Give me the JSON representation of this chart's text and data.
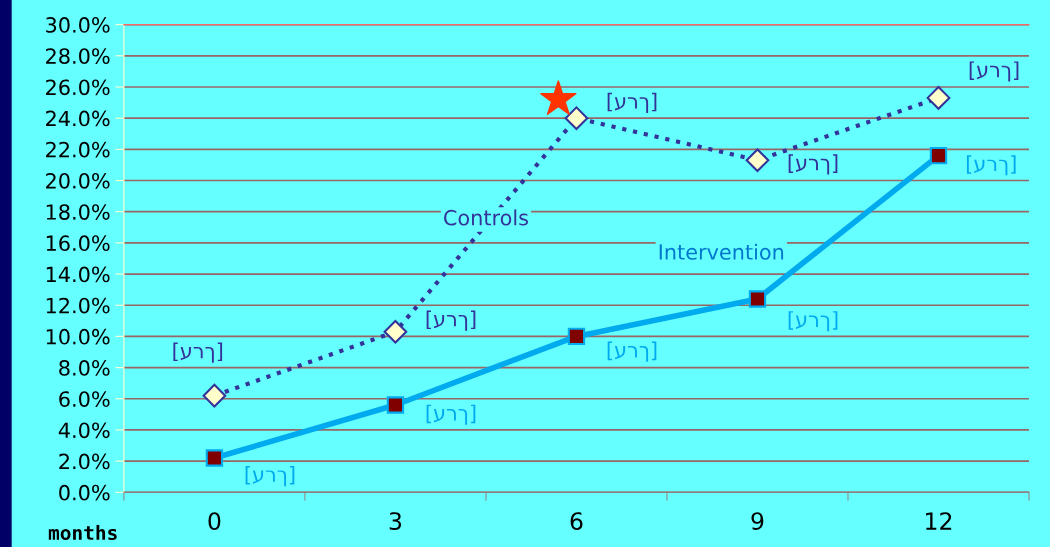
{
  "chart_data": {
    "type": "line",
    "categories": [
      "0",
      "3",
      "6",
      "9",
      "12"
    ],
    "xlabel": "months",
    "ylim": [
      0,
      30
    ],
    "yticks": [
      {
        "value": 0,
        "label": "0.0%"
      },
      {
        "value": 2,
        "label": "2.0%"
      },
      {
        "value": 4,
        "label": "4.0%"
      },
      {
        "value": 6,
        "label": "6.0%"
      },
      {
        "value": 8,
        "label": "8.0%"
      },
      {
        "value": 10,
        "label": "10.0%"
      },
      {
        "value": 12,
        "label": "12.0%"
      },
      {
        "value": 14,
        "label": "14.0%"
      },
      {
        "value": 16,
        "label": "16.0%"
      },
      {
        "value": 18,
        "label": "18.0%"
      },
      {
        "value": 20,
        "label": "20.0%"
      },
      {
        "value": 22,
        "label": "22.0%"
      },
      {
        "value": 24,
        "label": "24.0%"
      },
      {
        "value": 26,
        "label": "26.0%"
      },
      {
        "value": 28,
        "label": "28.0%"
      },
      {
        "value": 30,
        "label": "30.0%"
      }
    ],
    "grid": "y",
    "legend": false,
    "series": [
      {
        "name": "Controls",
        "color": "#333399",
        "line_style": "dotted",
        "marker": "diamond",
        "values": [
          6.2,
          10.3,
          24.0,
          21.3,
          25.3
        ],
        "value_labels": [
          "[ערך]",
          "[ערך]",
          "[ערך]",
          "[ערך]",
          "[ערך]"
        ]
      },
      {
        "name": "Intervention",
        "color": "#00aaee",
        "line_style": "solid",
        "marker": "square",
        "values": [
          2.2,
          5.6,
          10.0,
          12.4,
          21.6
        ],
        "value_labels": [
          "[ערך]",
          "[ערך]",
          "[ערך]",
          "[ערך]",
          "[ערך]"
        ]
      }
    ]
  }
}
